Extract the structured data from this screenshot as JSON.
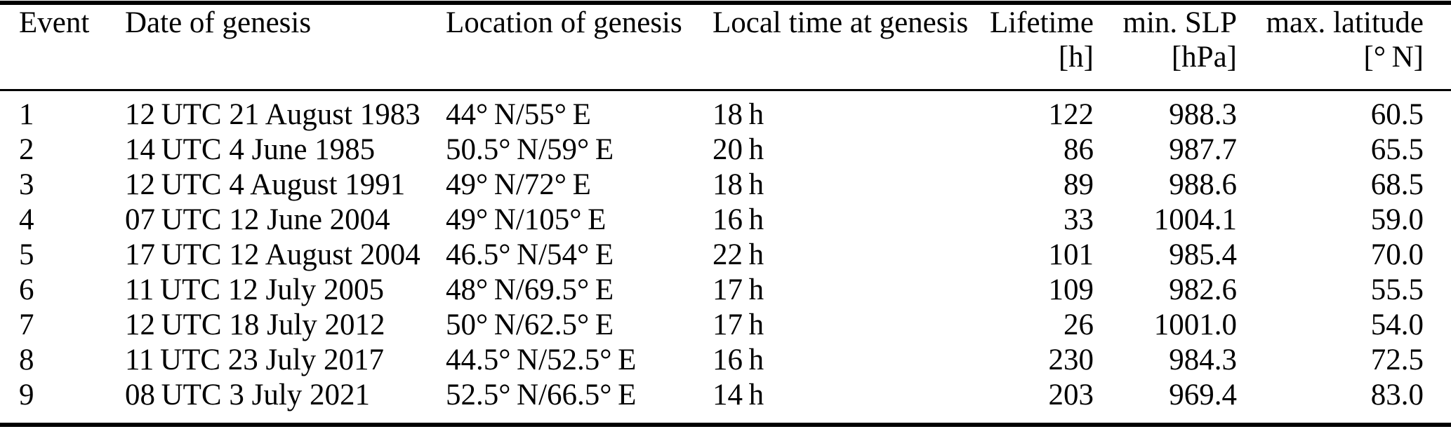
{
  "table": {
    "columns": [
      {
        "label": "Event",
        "unit": ""
      },
      {
        "label": "Date of genesis",
        "unit": ""
      },
      {
        "label": "Location of genesis",
        "unit": ""
      },
      {
        "label": "Local time at genesis",
        "unit": ""
      },
      {
        "label": "Lifetime",
        "unit": "[h]"
      },
      {
        "label": "min. SLP",
        "unit": "[hPa]"
      },
      {
        "label": "max. latitude",
        "unit": "[° N]"
      }
    ],
    "rows": [
      {
        "event": "1",
        "date": "12 UTC 21 August 1983",
        "location": "44° N/55° E",
        "local_time": "18 h",
        "lifetime": "122",
        "min_slp": "988.3",
        "max_lat": "60.5"
      },
      {
        "event": "2",
        "date": "14 UTC 4 June 1985",
        "location": "50.5° N/59° E",
        "local_time": "20 h",
        "lifetime": "86",
        "min_slp": "987.7",
        "max_lat": "65.5"
      },
      {
        "event": "3",
        "date": "12 UTC 4 August 1991",
        "location": "49° N/72° E",
        "local_time": "18 h",
        "lifetime": "89",
        "min_slp": "988.6",
        "max_lat": "68.5"
      },
      {
        "event": "4",
        "date": "07 UTC 12 June 2004",
        "location": "49° N/105° E",
        "local_time": "16 h",
        "lifetime": "33",
        "min_slp": "1004.1",
        "max_lat": "59.0"
      },
      {
        "event": "5",
        "date": "17 UTC 12 August 2004",
        "location": "46.5° N/54° E",
        "local_time": "22 h",
        "lifetime": "101",
        "min_slp": "985.4",
        "max_lat": "70.0"
      },
      {
        "event": "6",
        "date": "11 UTC 12 July 2005",
        "location": "48° N/69.5° E",
        "local_time": "17 h",
        "lifetime": "109",
        "min_slp": "982.6",
        "max_lat": "55.5"
      },
      {
        "event": "7",
        "date": "12 UTC 18 July 2012",
        "location": "50° N/62.5° E",
        "local_time": "17 h",
        "lifetime": "26",
        "min_slp": "1001.0",
        "max_lat": "54.0"
      },
      {
        "event": "8",
        "date": "11 UTC 23 July 2017",
        "location": "44.5° N/52.5° E",
        "local_time": "16 h",
        "lifetime": "230",
        "min_slp": "984.3",
        "max_lat": "72.5"
      },
      {
        "event": "9",
        "date": "08 UTC 3 July 2021",
        "location": "52.5° N/66.5° E",
        "local_time": "14 h",
        "lifetime": "203",
        "min_slp": "969.4",
        "max_lat": "83.0"
      }
    ]
  }
}
